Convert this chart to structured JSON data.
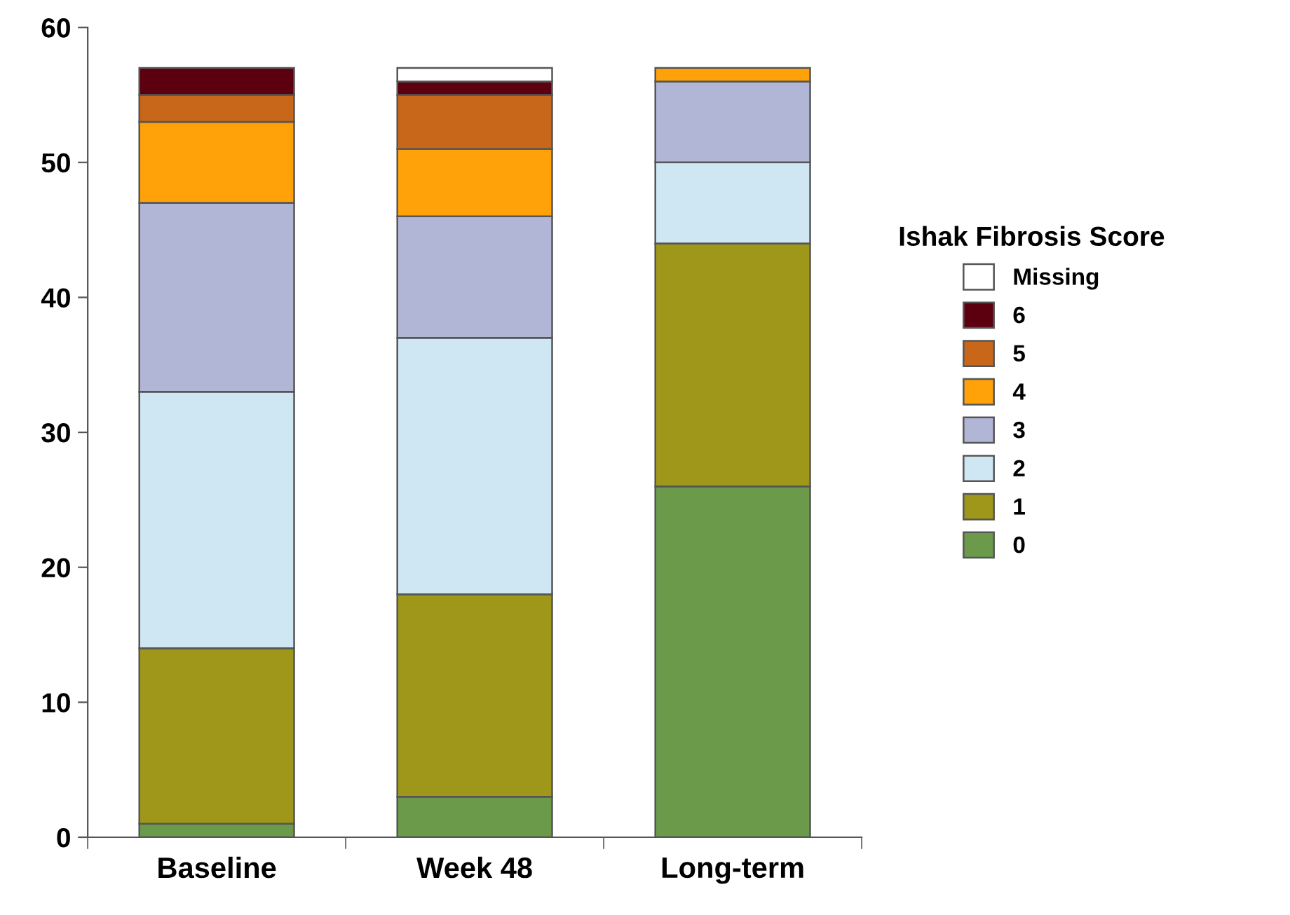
{
  "chart_data": {
    "type": "bar",
    "stacked": true,
    "categories": [
      "Baseline",
      "Week 48",
      "Long-term"
    ],
    "series": [
      {
        "name": "0",
        "color": "#6a9a4a",
        "values": [
          1,
          3,
          26
        ]
      },
      {
        "name": "1",
        "color": "#9e971a",
        "values": [
          13,
          15,
          18
        ]
      },
      {
        "name": "2",
        "color": "#cfe6f3",
        "values": [
          19,
          19,
          6
        ]
      },
      {
        "name": "3",
        "color": "#b2b6d6",
        "values": [
          14,
          9,
          6
        ]
      },
      {
        "name": "4",
        "color": "#ffa20a",
        "values": [
          6,
          5,
          1
        ]
      },
      {
        "name": "5",
        "color": "#c8661a",
        "values": [
          2,
          4,
          0
        ]
      },
      {
        "name": "6",
        "color": "#5c0010",
        "values": [
          2,
          1,
          0
        ]
      },
      {
        "name": "Missing",
        "color": "#ffffff",
        "values": [
          0,
          1,
          0
        ]
      }
    ],
    "ylim": [
      0,
      60
    ],
    "yticks": [
      0,
      10,
      20,
      30,
      40,
      50,
      60
    ],
    "legend": "right",
    "legend_title": "Ishak Fibrosis Score",
    "grid": false
  }
}
